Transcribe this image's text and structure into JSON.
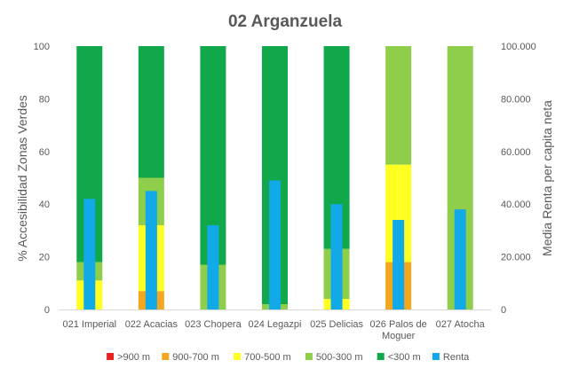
{
  "chart_data": {
    "type": "bar",
    "title": "02 Arganzuela",
    "ylabel": "% Accesibilidad Zonas Verdes",
    "y2label": "Media Renta per capita neta",
    "ylim": [
      0,
      100
    ],
    "y2lim": [
      0,
      100000
    ],
    "yticks": [
      "0",
      "20",
      "40",
      "60",
      "80",
      "100"
    ],
    "y2ticks": [
      "0",
      "20.000",
      "40.000",
      "60.000",
      "80.000",
      "100.000"
    ],
    "grid": false,
    "legend_position": "bottom",
    "categories": [
      "021 Imperial",
      "022 Acacias",
      "023 Chopera",
      "024 Legazpi",
      "025 Delicias",
      "026 Palos de Moguer",
      "027 Atocha"
    ],
    "category_lines": [
      [
        "021 Imperial"
      ],
      [
        "022 Acacias"
      ],
      [
        "023 Chopera"
      ],
      [
        "024 Legazpi"
      ],
      [
        "025 Delicias"
      ],
      [
        "026 Palos de",
        "Moguer"
      ],
      [
        "027 Atocha"
      ]
    ],
    "stack_series": [
      {
        "name": ">900 m",
        "color": "#e8231f",
        "values": [
          0,
          0,
          0,
          0,
          0,
          0,
          0
        ]
      },
      {
        "name": "900-700 m",
        "color": "#f2a71f",
        "values": [
          0,
          7,
          0,
          0,
          0,
          18,
          0
        ]
      },
      {
        "name": "700-500 m",
        "color": "#ffff22",
        "values": [
          11,
          25,
          0,
          0,
          4,
          37,
          0
        ]
      },
      {
        "name": "500-300 m",
        "color": "#8fce4a",
        "values": [
          7,
          18,
          17,
          2,
          19,
          45,
          100
        ]
      },
      {
        "name": "<300 m",
        "color": "#10a84a",
        "values": [
          82,
          50,
          83,
          98,
          77,
          0,
          0
        ]
      }
    ],
    "line_series": {
      "name": "Renta",
      "color": "#11a9e8",
      "values": [
        42000,
        45000,
        32000,
        49000,
        40000,
        34000,
        38000
      ]
    }
  }
}
